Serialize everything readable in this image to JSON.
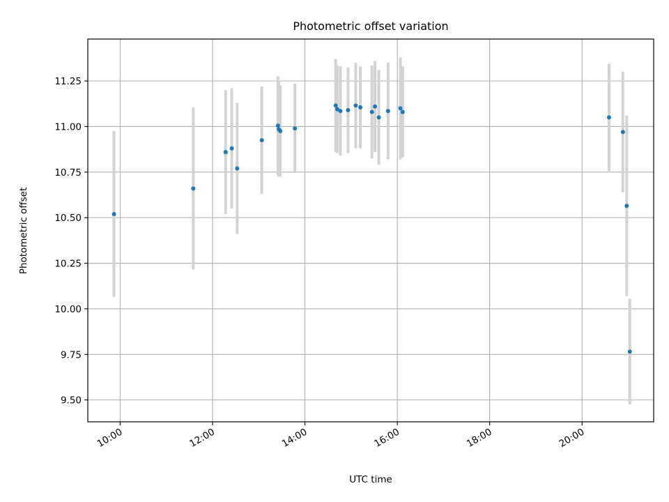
{
  "chart_data": {
    "type": "scatter",
    "title": "Photometric offset variation",
    "xlabel": "UTC time",
    "ylabel": "Photometric offset",
    "x_axis": {
      "kind": "time",
      "range": [
        "09:18",
        "21:33"
      ],
      "ticks": [
        "10:00",
        "12:00",
        "14:00",
        "16:00",
        "18:00",
        "20:00"
      ]
    },
    "y_axis": {
      "range": [
        9.38,
        11.48
      ],
      "ticks": [
        "9.50",
        "9.75",
        "10.00",
        "10.25",
        "10.50",
        "10.75",
        "11.00",
        "11.25"
      ]
    },
    "grid": true,
    "legend": "none",
    "colors": {
      "points": "#1f77b4",
      "errorbars": "#d3d3d3",
      "grid": "#b0b0b0"
    },
    "points": [
      {
        "x": "09:52",
        "y": 10.52,
        "yerr": 0.455
      },
      {
        "x": "11:35",
        "y": 10.66,
        "yerr": 0.445
      },
      {
        "x": "12:17",
        "y": 10.86,
        "yerr": 0.34
      },
      {
        "x": "12:25",
        "y": 10.88,
        "yerr": 0.33
      },
      {
        "x": "12:32",
        "y": 10.77,
        "yerr": 0.36
      },
      {
        "x": "13:04",
        "y": 10.925,
        "yerr": 0.295
      },
      {
        "x": "13:25",
        "y": 11.005,
        "yerr": 0.27
      },
      {
        "x": "13:26",
        "y": 10.985,
        "yerr": 0.26
      },
      {
        "x": "13:28",
        "y": 10.975,
        "yerr": 0.25
      },
      {
        "x": "13:47",
        "y": 10.99,
        "yerr": 0.245
      },
      {
        "x": "14:40",
        "y": 11.115,
        "yerr": 0.255
      },
      {
        "x": "14:42",
        "y": 11.095,
        "yerr": 0.24
      },
      {
        "x": "14:46",
        "y": 11.085,
        "yerr": 0.245
      },
      {
        "x": "14:56",
        "y": 11.09,
        "yerr": 0.235
      },
      {
        "x": "15:06",
        "y": 11.115,
        "yerr": 0.235
      },
      {
        "x": "15:12",
        "y": 11.105,
        "yerr": 0.225
      },
      {
        "x": "15:27",
        "y": 11.08,
        "yerr": 0.255
      },
      {
        "x": "15:31",
        "y": 11.11,
        "yerr": 0.25
      },
      {
        "x": "15:36",
        "y": 11.05,
        "yerr": 0.26
      },
      {
        "x": "15:48",
        "y": 11.085,
        "yerr": 0.265
      },
      {
        "x": "16:04",
        "y": 11.1,
        "yerr": 0.28
      },
      {
        "x": "16:07",
        "y": 11.08,
        "yerr": 0.25
      },
      {
        "x": "20:35",
        "y": 11.05,
        "yerr": 0.295
      },
      {
        "x": "20:53",
        "y": 10.97,
        "yerr": 0.33
      },
      {
        "x": "20:58",
        "y": 10.565,
        "yerr": 0.495
      },
      {
        "x": "21:02",
        "y": 9.765,
        "yerr": 0.29
      }
    ]
  }
}
